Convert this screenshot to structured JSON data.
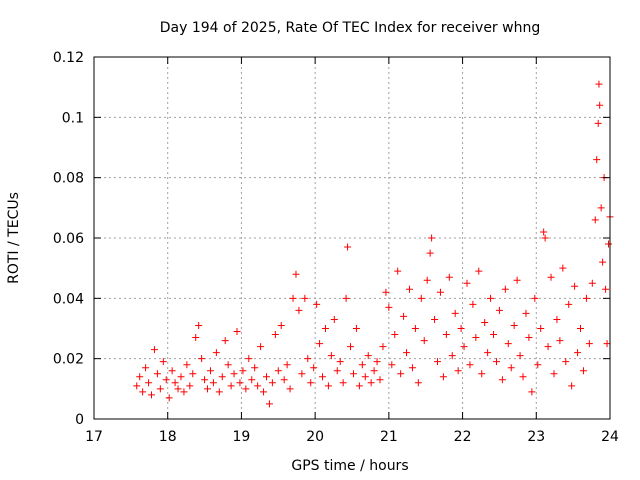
{
  "chart_data": {
    "type": "scatter",
    "title": "Day 194 of 2025, Rate Of TEC Index for receiver whng",
    "xlabel": "GPS time / hours",
    "ylabel": "ROTI / TECUs",
    "xlim": [
      17,
      24
    ],
    "ylim": [
      0,
      0.12
    ],
    "x_ticks": [
      17,
      18,
      19,
      20,
      21,
      22,
      23,
      24
    ],
    "y_ticks": [
      0,
      0.02,
      0.04,
      0.06,
      0.08,
      0.1,
      0.12
    ],
    "x_tick_labels": [
      "17",
      "18",
      "19",
      "20",
      "21",
      "22",
      "23",
      "24"
    ],
    "y_tick_labels": [
      "0",
      "0.02",
      "0.04",
      "0.06",
      "0.08",
      "0.1",
      "0.12"
    ],
    "grid": true,
    "marker": "+",
    "color": "#ff0000",
    "series": [
      {
        "points": [
          [
            17.58,
            0.011
          ],
          [
            17.62,
            0.014
          ],
          [
            17.66,
            0.009
          ],
          [
            17.7,
            0.017
          ],
          [
            17.74,
            0.012
          ],
          [
            17.78,
            0.008
          ],
          [
            17.82,
            0.023
          ],
          [
            17.86,
            0.015
          ],
          [
            17.9,
            0.01
          ],
          [
            17.94,
            0.019
          ],
          [
            17.98,
            0.013
          ],
          [
            18.02,
            0.007
          ],
          [
            18.06,
            0.016
          ],
          [
            18.1,
            0.012
          ],
          [
            18.14,
            0.01
          ],
          [
            18.18,
            0.014
          ],
          [
            18.22,
            0.009
          ],
          [
            18.26,
            0.018
          ],
          [
            18.3,
            0.011
          ],
          [
            18.34,
            0.015
          ],
          [
            18.38,
            0.027
          ],
          [
            18.42,
            0.031
          ],
          [
            18.46,
            0.02
          ],
          [
            18.5,
            0.013
          ],
          [
            18.54,
            0.01
          ],
          [
            18.58,
            0.016
          ],
          [
            18.62,
            0.012
          ],
          [
            18.66,
            0.022
          ],
          [
            18.7,
            0.009
          ],
          [
            18.74,
            0.014
          ],
          [
            18.78,
            0.026
          ],
          [
            18.82,
            0.018
          ],
          [
            18.86,
            0.011
          ],
          [
            18.9,
            0.015
          ],
          [
            18.94,
            0.029
          ],
          [
            18.98,
            0.012
          ],
          [
            19.02,
            0.016
          ],
          [
            19.06,
            0.01
          ],
          [
            19.1,
            0.02
          ],
          [
            19.14,
            0.013
          ],
          [
            19.18,
            0.017
          ],
          [
            19.22,
            0.011
          ],
          [
            19.26,
            0.024
          ],
          [
            19.3,
            0.009
          ],
          [
            19.34,
            0.014
          ],
          [
            19.38,
            0.005
          ],
          [
            19.42,
            0.012
          ],
          [
            19.46,
            0.028
          ],
          [
            19.5,
            0.016
          ],
          [
            19.54,
            0.031
          ],
          [
            19.58,
            0.013
          ],
          [
            19.62,
            0.018
          ],
          [
            19.66,
            0.01
          ],
          [
            19.7,
            0.04
          ],
          [
            19.74,
            0.048
          ],
          [
            19.78,
            0.036
          ],
          [
            19.82,
            0.015
          ],
          [
            19.86,
            0.04
          ],
          [
            19.9,
            0.02
          ],
          [
            19.94,
            0.012
          ],
          [
            19.98,
            0.017
          ],
          [
            20.02,
            0.038
          ],
          [
            20.06,
            0.025
          ],
          [
            20.1,
            0.014
          ],
          [
            20.14,
            0.03
          ],
          [
            20.18,
            0.011
          ],
          [
            20.22,
            0.021
          ],
          [
            20.26,
            0.033
          ],
          [
            20.3,
            0.016
          ],
          [
            20.34,
            0.019
          ],
          [
            20.38,
            0.012
          ],
          [
            20.42,
            0.04
          ],
          [
            20.44,
            0.057
          ],
          [
            20.48,
            0.024
          ],
          [
            20.52,
            0.015
          ],
          [
            20.56,
            0.03
          ],
          [
            20.6,
            0.011
          ],
          [
            20.64,
            0.018
          ],
          [
            20.68,
            0.014
          ],
          [
            20.72,
            0.021
          ],
          [
            20.76,
            0.012
          ],
          [
            20.8,
            0.016
          ],
          [
            20.84,
            0.019
          ],
          [
            20.88,
            0.013
          ],
          [
            20.92,
            0.024
          ],
          [
            20.96,
            0.042
          ],
          [
            21.0,
            0.037
          ],
          [
            21.04,
            0.018
          ],
          [
            21.08,
            0.028
          ],
          [
            21.12,
            0.049
          ],
          [
            21.16,
            0.015
          ],
          [
            21.2,
            0.034
          ],
          [
            21.24,
            0.022
          ],
          [
            21.28,
            0.043
          ],
          [
            21.32,
            0.017
          ],
          [
            21.36,
            0.03
          ],
          [
            21.4,
            0.012
          ],
          [
            21.44,
            0.04
          ],
          [
            21.48,
            0.026
          ],
          [
            21.52,
            0.046
          ],
          [
            21.56,
            0.055
          ],
          [
            21.58,
            0.06
          ],
          [
            21.62,
            0.033
          ],
          [
            21.66,
            0.019
          ],
          [
            21.7,
            0.042
          ],
          [
            21.74,
            0.014
          ],
          [
            21.78,
            0.028
          ],
          [
            21.82,
            0.047
          ],
          [
            21.86,
            0.021
          ],
          [
            21.9,
            0.035
          ],
          [
            21.94,
            0.016
          ],
          [
            21.98,
            0.03
          ],
          [
            22.02,
            0.024
          ],
          [
            22.06,
            0.045
          ],
          [
            22.1,
            0.018
          ],
          [
            22.14,
            0.038
          ],
          [
            22.18,
            0.027
          ],
          [
            22.22,
            0.049
          ],
          [
            22.26,
            0.015
          ],
          [
            22.3,
            0.032
          ],
          [
            22.34,
            0.022
          ],
          [
            22.38,
            0.04
          ],
          [
            22.42,
            0.028
          ],
          [
            22.46,
            0.019
          ],
          [
            22.5,
            0.036
          ],
          [
            22.54,
            0.013
          ],
          [
            22.58,
            0.043
          ],
          [
            22.62,
            0.025
          ],
          [
            22.66,
            0.017
          ],
          [
            22.7,
            0.031
          ],
          [
            22.74,
            0.046
          ],
          [
            22.78,
            0.021
          ],
          [
            22.82,
            0.014
          ],
          [
            22.86,
            0.035
          ],
          [
            22.9,
            0.027
          ],
          [
            22.94,
            0.009
          ],
          [
            22.98,
            0.04
          ],
          [
            23.02,
            0.018
          ],
          [
            23.06,
            0.03
          ],
          [
            23.1,
            0.062
          ],
          [
            23.12,
            0.06
          ],
          [
            23.16,
            0.024
          ],
          [
            23.2,
            0.047
          ],
          [
            23.24,
            0.015
          ],
          [
            23.28,
            0.033
          ],
          [
            23.32,
            0.026
          ],
          [
            23.36,
            0.05
          ],
          [
            23.4,
            0.019
          ],
          [
            23.44,
            0.038
          ],
          [
            23.48,
            0.011
          ],
          [
            23.52,
            0.044
          ],
          [
            23.56,
            0.022
          ],
          [
            23.6,
            0.03
          ],
          [
            23.64,
            0.016
          ],
          [
            23.68,
            0.04
          ],
          [
            23.72,
            0.025
          ],
          [
            23.76,
            0.045
          ],
          [
            23.8,
            0.066
          ],
          [
            23.82,
            0.086
          ],
          [
            23.84,
            0.098
          ],
          [
            23.85,
            0.111
          ],
          [
            23.86,
            0.104
          ],
          [
            23.88,
            0.07
          ],
          [
            23.9,
            0.052
          ],
          [
            23.92,
            0.08
          ],
          [
            23.94,
            0.043
          ],
          [
            23.96,
            0.025
          ],
          [
            23.98,
            0.058
          ],
          [
            24.0,
            0.067
          ]
        ]
      }
    ]
  }
}
